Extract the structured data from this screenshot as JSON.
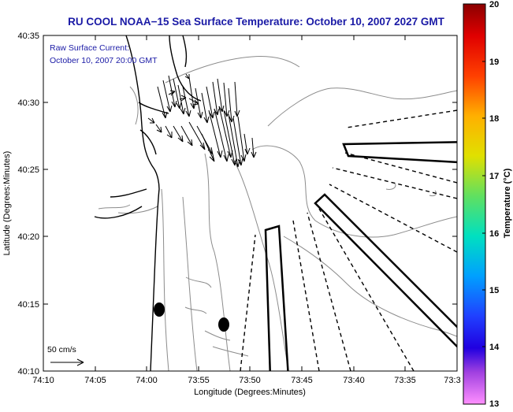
{
  "title": "RU COOL  NOAA−15  Sea Surface Temperature:  October 10, 2007 2027 GMT",
  "annotation": {
    "line1": "Raw Surface Current:",
    "line2": "October 10, 2007 20:00 GMT"
  },
  "scale_label": "50 cm/s",
  "axes": {
    "ylabel": "Latitude (Degrees:Minutes)",
    "xlabel": "Longitude (Degrees:Minutes)",
    "yticks": [
      "40:35",
      "40:30",
      "40:25",
      "40:20",
      "40:15",
      "40:10"
    ],
    "xticks": [
      "74:10",
      "74:05",
      "74:00",
      "73:55",
      "73:50",
      "73:45",
      "73:40",
      "73:35",
      "73:3"
    ]
  },
  "colorbar": {
    "label": "Temperature (°C)",
    "ticks": [
      "20",
      "19",
      "18",
      "17",
      "16",
      "15",
      "14",
      "13"
    ],
    "min": 13,
    "max": 20
  },
  "colors": {
    "title": "#1a1aa6",
    "annotation": "#1a1aa6",
    "land": "#000000",
    "contours": "#8c8c8c"
  }
}
